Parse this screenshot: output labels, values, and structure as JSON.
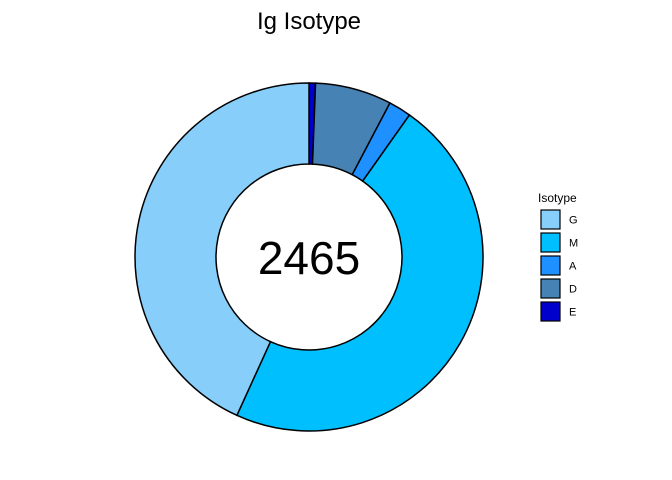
{
  "chart_data": {
    "type": "pie",
    "variant": "donut",
    "title": "Ig Isotype",
    "center_label": "2465",
    "legend_title": "Isotype",
    "legend_placement": "right",
    "slices": [
      {
        "label": "E",
        "value": 0.006,
        "color": "#0000CD"
      },
      {
        "label": "D",
        "value": 0.071,
        "color": "#4682B4"
      },
      {
        "label": "A",
        "value": 0.021,
        "color": "#1E90FF"
      },
      {
        "label": "M",
        "value": 0.47,
        "color": "#00BFFF"
      },
      {
        "label": "G",
        "value": 0.432,
        "color": "#87CEFA"
      }
    ],
    "legend_order": [
      "G",
      "M",
      "A",
      "D",
      "E"
    ],
    "outline_color": "#000000"
  }
}
